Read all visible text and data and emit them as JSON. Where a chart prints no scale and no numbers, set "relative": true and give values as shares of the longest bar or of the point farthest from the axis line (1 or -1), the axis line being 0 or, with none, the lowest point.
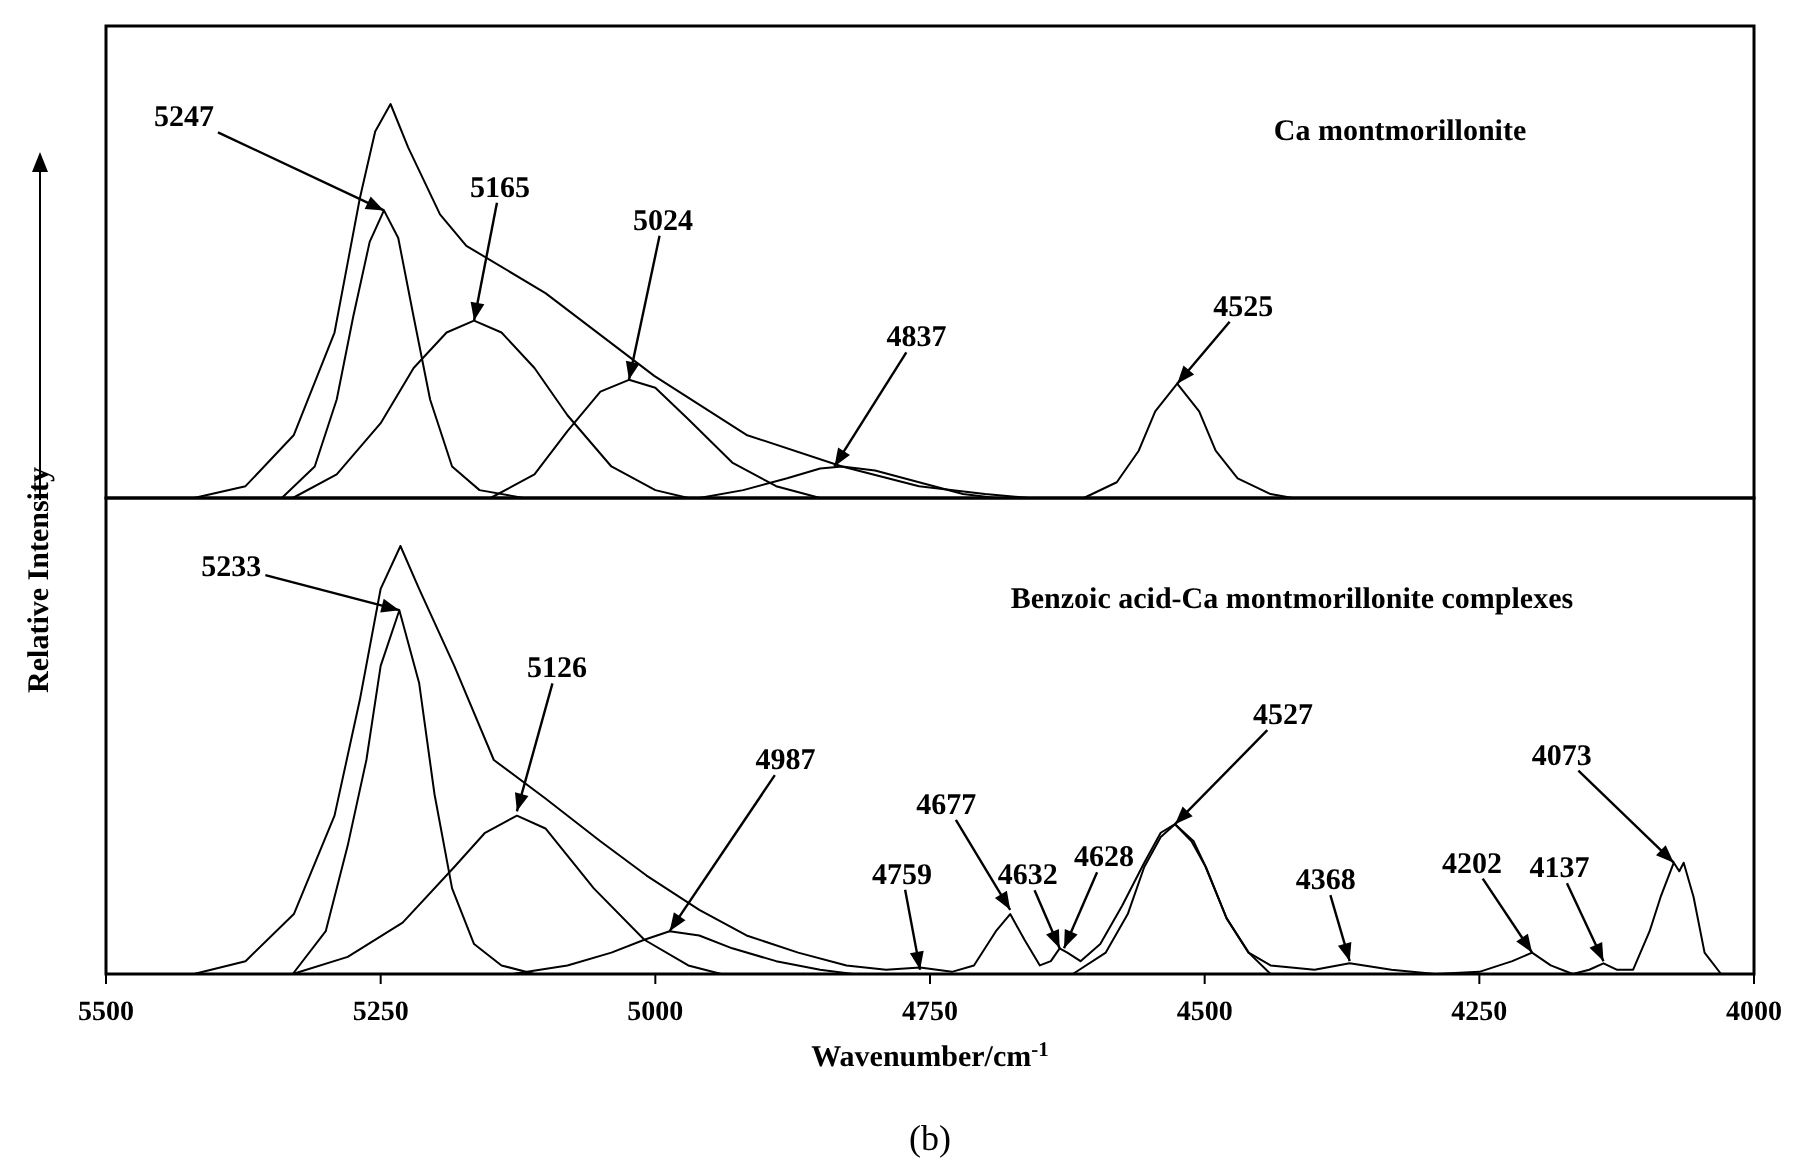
{
  "chart_data": [
    {
      "type": "line",
      "title": "Ca montmorillonite",
      "relative": true,
      "xlim": [
        5500,
        4000
      ],
      "series": [
        {
          "color": "#000000",
          "x": [
            5420,
            5373,
            5329,
            5292,
            5269,
            5255,
            5241,
            5225,
            5196,
            5172,
            5100,
            5001,
            4917,
            4830,
            4760,
            4700,
            4660,
            4610,
            4580,
            4560,
            4545,
            4525,
            4505,
            4490,
            4470,
            4440,
            4420,
            4000
          ],
          "values": [
            0,
            0.03,
            0.16,
            0.42,
            0.76,
            0.93,
            1.0,
            0.89,
            0.72,
            0.64,
            0.52,
            0.31,
            0.16,
            0.08,
            0.03,
            0.01,
            0,
            0,
            0.04,
            0.12,
            0.22,
            0.29,
            0.22,
            0.12,
            0.05,
            0.01,
            0,
            0
          ]
        },
        {
          "color": "#000000",
          "x": [
            5340,
            5310,
            5290,
            5275,
            5260,
            5247,
            5234,
            5220,
            5205,
            5185,
            5160,
            5120
          ],
          "values": [
            0,
            0.08,
            0.25,
            0.46,
            0.65,
            0.73,
            0.66,
            0.46,
            0.25,
            0.08,
            0.02,
            0
          ]
        },
        {
          "color": "#000000",
          "x": [
            5330,
            5290,
            5250,
            5220,
            5190,
            5165,
            5140,
            5110,
            5080,
            5040,
            5000,
            4970
          ],
          "values": [
            0,
            0.06,
            0.19,
            0.33,
            0.42,
            0.45,
            0.42,
            0.33,
            0.21,
            0.08,
            0.02,
            0
          ]
        },
        {
          "color": "#000000",
          "x": [
            5150,
            5110,
            5080,
            5050,
            5024,
            5000,
            4970,
            4930,
            4890,
            4850
          ],
          "values": [
            0,
            0.06,
            0.17,
            0.27,
            0.3,
            0.28,
            0.2,
            0.09,
            0.03,
            0
          ]
        },
        {
          "color": "#000000",
          "x": [
            4960,
            4920,
            4880,
            4850,
            4830,
            4800,
            4760,
            4720,
            4690
          ],
          "values": [
            0,
            0.02,
            0.05,
            0.075,
            0.08,
            0.07,
            0.04,
            0.01,
            0
          ]
        }
      ],
      "annotations": [
        {
          "text": "5247",
          "x": 5247,
          "y": 0.73
        },
        {
          "text": "5165",
          "x": 5165,
          "y": 0.45
        },
        {
          "text": "5024",
          "x": 5024,
          "y": 0.3
        },
        {
          "text": "4837",
          "x": 4837,
          "y": 0.08
        },
        {
          "text": "4525",
          "x": 4525,
          "y": 0.29
        }
      ]
    },
    {
      "type": "line",
      "title": "Benzoic acid-Ca montmorillonite complexes",
      "relative": true,
      "xlim": [
        5500,
        4000
      ],
      "xticks": [
        5500,
        5250,
        5000,
        4750,
        4500,
        4250,
        4000
      ],
      "xlabel": "Wavenumber/cm$^{-1}$",
      "ylabel": "Relative Intensity",
      "series": [
        {
          "color": "#000000",
          "x": [
            5420,
            5373,
            5329,
            5292,
            5269,
            5250,
            5232,
            5215,
            5183,
            5147,
            5100,
            5050,
            5008,
            4960,
            4917,
            4870,
            4826,
            4790,
            4759,
            4730,
            4710,
            4690,
            4677,
            4664,
            4650,
            4640,
            4632,
            4625,
            4613,
            4595,
            4575,
            4555,
            4540,
            4527,
            4510,
            4499,
            4480,
            4460,
            4440,
            4400,
            4368,
            4330,
            4290,
            4250,
            4220,
            4202,
            4185,
            4165,
            4150,
            4137,
            4125,
            4110,
            4095,
            4085,
            4073,
            4068,
            4064,
            4055,
            4045,
            4030,
            4000
          ],
          "values": [
            0,
            0.03,
            0.14,
            0.37,
            0.64,
            0.9,
            1.0,
            0.9,
            0.72,
            0.5,
            0.41,
            0.31,
            0.23,
            0.15,
            0.09,
            0.05,
            0.02,
            0.01,
            0.015,
            0.005,
            0.02,
            0.1,
            0.14,
            0.08,
            0.02,
            0.03,
            0.06,
            0.05,
            0.03,
            0.07,
            0.16,
            0.26,
            0.33,
            0.35,
            0.31,
            0.25,
            0.13,
            0.05,
            0.02,
            0.01,
            0.025,
            0.01,
            0,
            0.005,
            0.03,
            0.05,
            0.02,
            0,
            0.01,
            0.025,
            0.01,
            0.01,
            0.1,
            0.18,
            0.26,
            0.24,
            0.26,
            0.18,
            0.05,
            0,
            0
          ]
        },
        {
          "color": "#000000",
          "x": [
            5330,
            5300,
            5280,
            5263,
            5250,
            5233,
            5215,
            5201,
            5185,
            5165,
            5140,
            5110
          ],
          "values": [
            0,
            0.1,
            0.3,
            0.5,
            0.72,
            0.85,
            0.68,
            0.42,
            0.2,
            0.07,
            0.02,
            0
          ]
        },
        {
          "color": "#000000",
          "x": [
            5330,
            5280,
            5230,
            5183,
            5155,
            5126,
            5100,
            5056,
            5010,
            4970,
            4940
          ],
          "values": [
            0,
            0.04,
            0.12,
            0.25,
            0.33,
            0.37,
            0.34,
            0.2,
            0.08,
            0.02,
            0
          ]
        },
        {
          "color": "#000000",
          "x": [
            5130,
            5080,
            5040,
            5010,
            4987,
            4960,
            4930,
            4890,
            4850,
            4820
          ],
          "values": [
            0,
            0.02,
            0.05,
            0.08,
            0.1,
            0.09,
            0.06,
            0.03,
            0.01,
            0
          ]
        },
        {
          "color": "#000000",
          "x": [
            4620,
            4590,
            4570,
            4555,
            4540,
            4527,
            4512,
            4499,
            4480,
            4460,
            4440
          ],
          "values": [
            0,
            0.05,
            0.14,
            0.25,
            0.32,
            0.35,
            0.31,
            0.25,
            0.13,
            0.05,
            0
          ]
        }
      ],
      "annotations": [
        {
          "text": "5233",
          "x": 5233,
          "y": 0.85
        },
        {
          "text": "5126",
          "x": 5126,
          "y": 0.38
        },
        {
          "text": "4987",
          "x": 4987,
          "y": 0.1
        },
        {
          "text": "4759",
          "x": 4759,
          "y": 0.01
        },
        {
          "text": "4677",
          "x": 4677,
          "y": 0.15
        },
        {
          "text": "4632",
          "x": 4632,
          "y": 0.06
        },
        {
          "text": "4628",
          "x": 4628,
          "y": 0.06
        },
        {
          "text": "4527",
          "x": 4527,
          "y": 0.35
        },
        {
          "text": "4368",
          "x": 4368,
          "y": 0.03
        },
        {
          "text": "4202",
          "x": 4202,
          "y": 0.05
        },
        {
          "text": "4137",
          "x": 4137,
          "y": 0.03
        },
        {
          "text": "4073",
          "x": 4073,
          "y": 0.26
        },
        "(b)"
      ]
    }
  ]
}
